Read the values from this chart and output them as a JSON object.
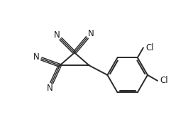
{
  "background": "#ffffff",
  "bond_color": "#2a2a2a",
  "bond_width": 1.4,
  "figsize": [
    2.72,
    1.82
  ],
  "dpi": 100,
  "font_size": 8.5,
  "font_color": "#1a1a1a",
  "xlim": [
    0,
    10
  ],
  "ylim": [
    0,
    6.7
  ]
}
